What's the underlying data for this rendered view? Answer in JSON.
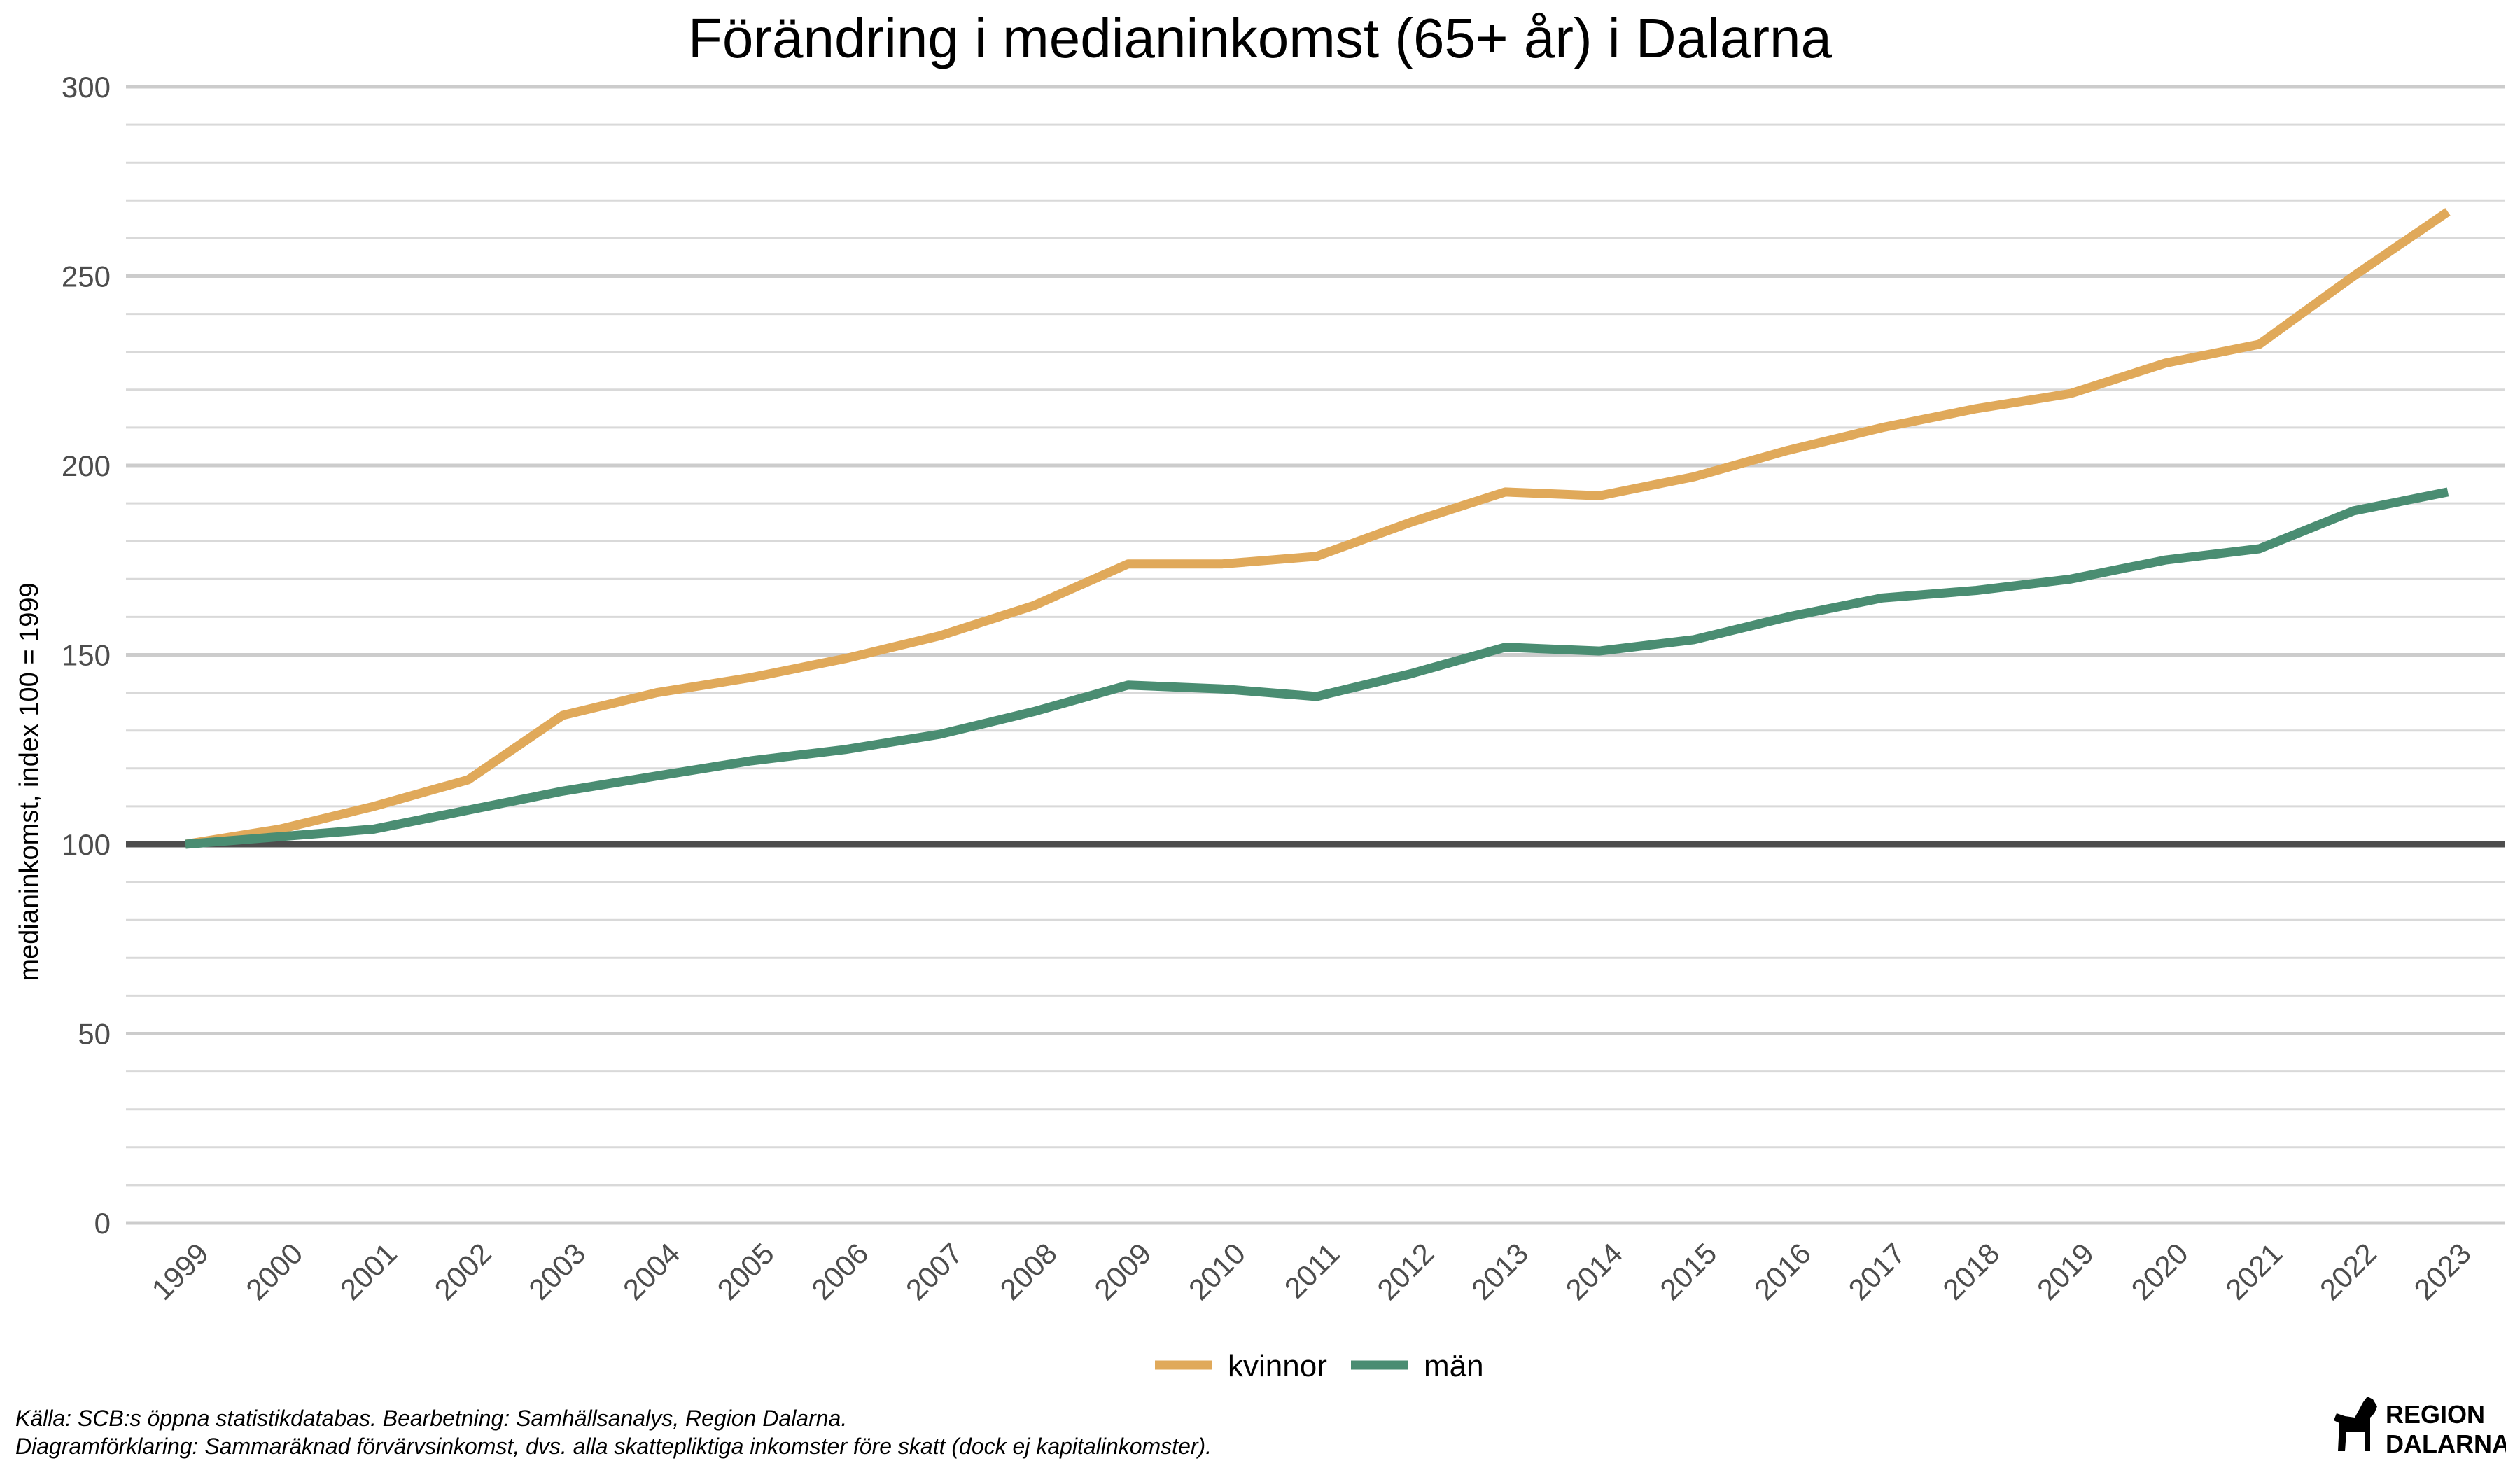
{
  "chart_data": {
    "type": "line",
    "title": "Förändring i medianinkomst (65+ år) i Dalarna",
    "ylabel": "medianinkomst, index 100 = 1999",
    "xlabel": "",
    "ylim": [
      0,
      300
    ],
    "yticks": [
      0,
      50,
      100,
      150,
      200,
      250,
      300
    ],
    "categories": [
      "1999",
      "2000",
      "2001",
      "2002",
      "2003",
      "2004",
      "2005",
      "2006",
      "2007",
      "2008",
      "2009",
      "2010",
      "2011",
      "2012",
      "2013",
      "2014",
      "2015",
      "2016",
      "2017",
      "2018",
      "2019",
      "2020",
      "2021",
      "2022",
      "2023"
    ],
    "reference_line": 100,
    "grid": true,
    "legend_position": "bottom",
    "series": [
      {
        "name": "kvinnor",
        "color": "#e0a95a",
        "values": [
          100,
          104,
          110,
          117,
          134,
          140,
          144,
          149,
          155,
          163,
          174,
          174,
          176,
          185,
          193,
          192,
          197,
          204,
          210,
          215,
          219,
          227,
          232,
          250,
          267
        ]
      },
      {
        "name": "män",
        "color": "#4a8d72",
        "values": [
          100,
          102,
          104,
          109,
          114,
          118,
          122,
          125,
          129,
          135,
          142,
          141,
          139,
          145,
          152,
          151,
          154,
          160,
          165,
          167,
          170,
          175,
          178,
          188,
          193
        ]
      }
    ]
  },
  "footer": {
    "source": "Källa: SCB:s öppna statistikdatabas. Bearbetning: Samhällsanalys, Region Dalarna.",
    "explanation": "Diagramförklaring: Sammaräknad förvärvsinkomst, dvs. alla skattepliktiga inkomster före skatt (dock ej kapitalinkomster)."
  },
  "logo": {
    "line1": "REGION",
    "line2": "DALARNA"
  }
}
